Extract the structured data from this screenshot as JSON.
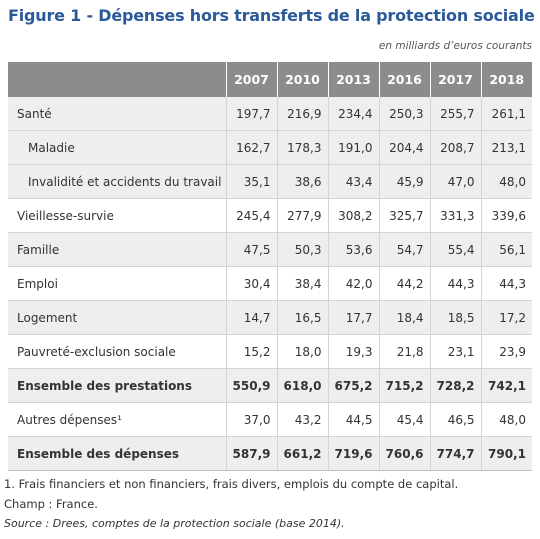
{
  "title": "Figure 1 - Dépenses hors transferts de la protection sociale",
  "unit_note": "en milliards d’euros courants",
  "table": {
    "columns": [
      "",
      "2007",
      "2010",
      "2013",
      "2016",
      "2017",
      "2018"
    ],
    "rows": [
      {
        "label": "Santé",
        "values": [
          "197,7",
          "216,9",
          "234,4",
          "250,3",
          "255,7",
          "261,1"
        ],
        "shaded": true,
        "indent": false,
        "bold": false
      },
      {
        "label": "Maladie",
        "values": [
          "162,7",
          "178,3",
          "191,0",
          "204,4",
          "208,7",
          "213,1"
        ],
        "shaded": true,
        "indent": true,
        "bold": false
      },
      {
        "label": "Invalidité et accidents du travail",
        "values": [
          "35,1",
          "38,6",
          "43,4",
          "45,9",
          "47,0",
          "48,0"
        ],
        "shaded": true,
        "indent": true,
        "bold": false
      },
      {
        "label": "Vieillesse-survie",
        "values": [
          "245,4",
          "277,9",
          "308,2",
          "325,7",
          "331,3",
          "339,6"
        ],
        "shaded": false,
        "indent": false,
        "bold": false
      },
      {
        "label": "Famille",
        "values": [
          "47,5",
          "50,3",
          "53,6",
          "54,7",
          "55,4",
          "56,1"
        ],
        "shaded": true,
        "indent": false,
        "bold": false
      },
      {
        "label": "Emploi",
        "values": [
          "30,4",
          "38,4",
          "42,0",
          "44,2",
          "44,3",
          "44,3"
        ],
        "shaded": false,
        "indent": false,
        "bold": false
      },
      {
        "label": "Logement",
        "values": [
          "14,7",
          "16,5",
          "17,7",
          "18,4",
          "18,5",
          "17,2"
        ],
        "shaded": true,
        "indent": false,
        "bold": false
      },
      {
        "label": "Pauvreté-exclusion sociale",
        "values": [
          "15,2",
          "18,0",
          "19,3",
          "21,8",
          "23,1",
          "23,9"
        ],
        "shaded": false,
        "indent": false,
        "bold": false
      },
      {
        "label": "Ensemble des prestations",
        "values": [
          "550,9",
          "618,0",
          "675,2",
          "715,2",
          "728,2",
          "742,1"
        ],
        "shaded": true,
        "indent": false,
        "bold": true
      },
      {
        "label": "Autres dépenses¹",
        "values": [
          "37,0",
          "43,2",
          "44,5",
          "45,4",
          "46,5",
          "48,0"
        ],
        "shaded": false,
        "indent": false,
        "bold": false
      },
      {
        "label": "Ensemble des dépenses",
        "values": [
          "587,9",
          "661,2",
          "719,6",
          "760,6",
          "774,7",
          "790,1"
        ],
        "shaded": true,
        "indent": false,
        "bold": true
      }
    ]
  },
  "footnotes": {
    "note1": "1. Frais financiers et non financiers, frais divers, emplois du compte de capital.",
    "champ": "Champ : France.",
    "source": "Source : Drees, comptes de la protection sociale (base 2014)."
  },
  "colors": {
    "title": "#2b5a9a",
    "header_bg": "#8c8c8c",
    "row_shade": "#eeeeee"
  }
}
